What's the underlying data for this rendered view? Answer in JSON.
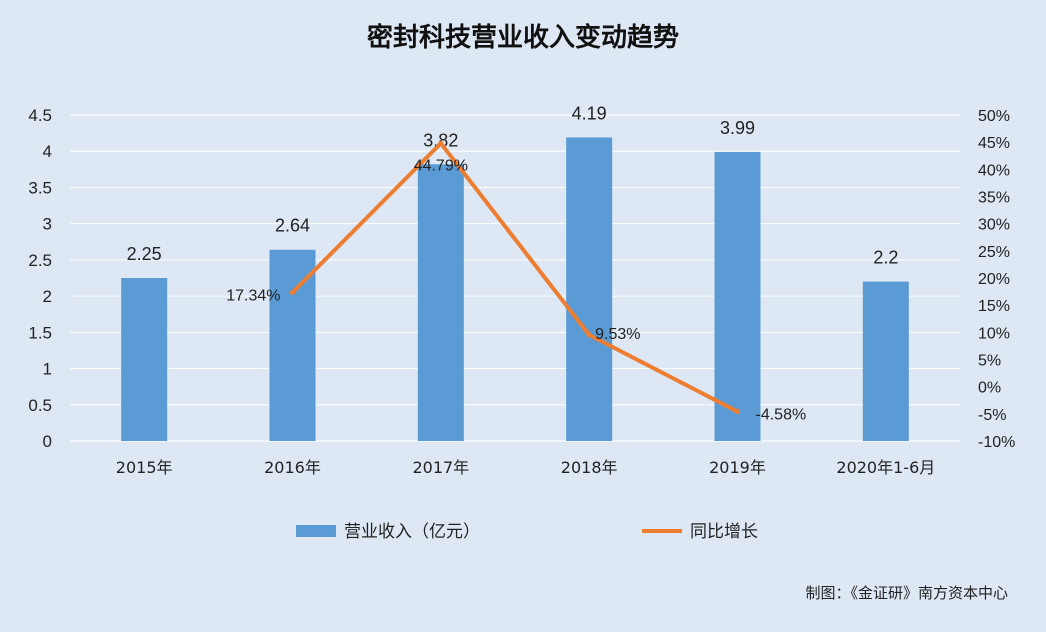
{
  "chart_data": {
    "type": "bar",
    "title": "密封科技营业收入变动趋势",
    "categories": [
      "2015年",
      "2016年",
      "2017年",
      "2018年",
      "2019年",
      "2020年1-6月"
    ],
    "series": [
      {
        "name": "营业收入（亿元）",
        "type": "bar",
        "axis": "left",
        "values": [
          2.25,
          2.64,
          3.82,
          4.19,
          3.99,
          2.2
        ],
        "labels": [
          "2.25",
          "2.64",
          "3.82",
          "4.19",
          "3.99",
          "2.2"
        ],
        "color": "#5b9bd5"
      },
      {
        "name": "同比增长",
        "type": "line",
        "axis": "right",
        "values": [
          null,
          17.34,
          44.79,
          9.53,
          -4.58,
          null
        ],
        "labels": [
          "",
          "17.34%",
          "44.79%",
          "9.53%",
          "-4.58%",
          ""
        ],
        "color": "#ed7d31"
      }
    ],
    "y_left": {
      "min": 0,
      "max": 4.5,
      "ticks": [
        "0",
        "0.5",
        "1",
        "1.5",
        "2",
        "2.5",
        "3",
        "3.5",
        "4",
        "4.5"
      ]
    },
    "y_right": {
      "min": -10,
      "max": 50,
      "unit": "%",
      "ticks": [
        "-10%",
        "-5%",
        "0%",
        "5%",
        "10%",
        "15%",
        "20%",
        "25%",
        "30%",
        "35%",
        "40%",
        "45%",
        "50%"
      ]
    },
    "grid": true,
    "legend_position": "bottom"
  },
  "footer": {
    "source": "制图：《金证研》南方资本中心"
  },
  "colors": {
    "background": "#dde8f4",
    "grid": "#ffffff"
  }
}
